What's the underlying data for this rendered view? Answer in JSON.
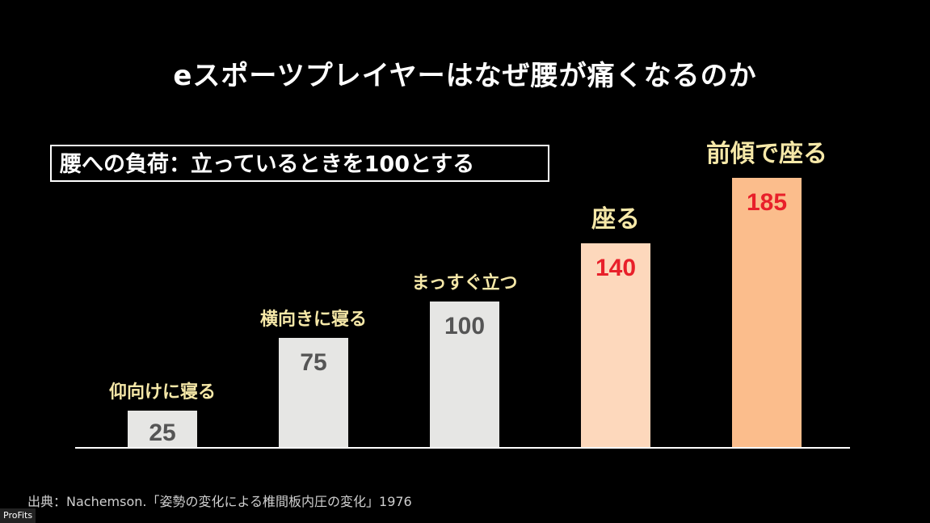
{
  "title": "eスポーツプレイヤーはなぜ腰が痛くなるのか",
  "note": "腰への負荷：立っているときを100とする",
  "source": "出典：Nachemson.「姿勢の変化による椎間板内圧の変化」1976",
  "brand": "ProFits",
  "chart_data": {
    "type": "bar",
    "title": "eスポーツプレイヤーはなぜ腰が痛くなるのか",
    "subtitle": "腰への負荷：立っているときを100とする",
    "categories": [
      "仰向けに寝る",
      "横向きに寝る",
      "まっすぐ立つ",
      "座る",
      "前傾で座る"
    ],
    "values": [
      25,
      75,
      100,
      140,
      185
    ],
    "bar_colors": [
      "#e6e6e4",
      "#e6e6e4",
      "#e6e6e4",
      "#fdd8bc",
      "#fbbd8c"
    ],
    "value_colors": [
      "#555555",
      "#555555",
      "#555555",
      "#e8202a",
      "#e8202a"
    ],
    "label_color": "#f6e8a8",
    "xlabel": "",
    "ylabel": "",
    "ylim": [
      0,
      185
    ],
    "grid": false
  }
}
